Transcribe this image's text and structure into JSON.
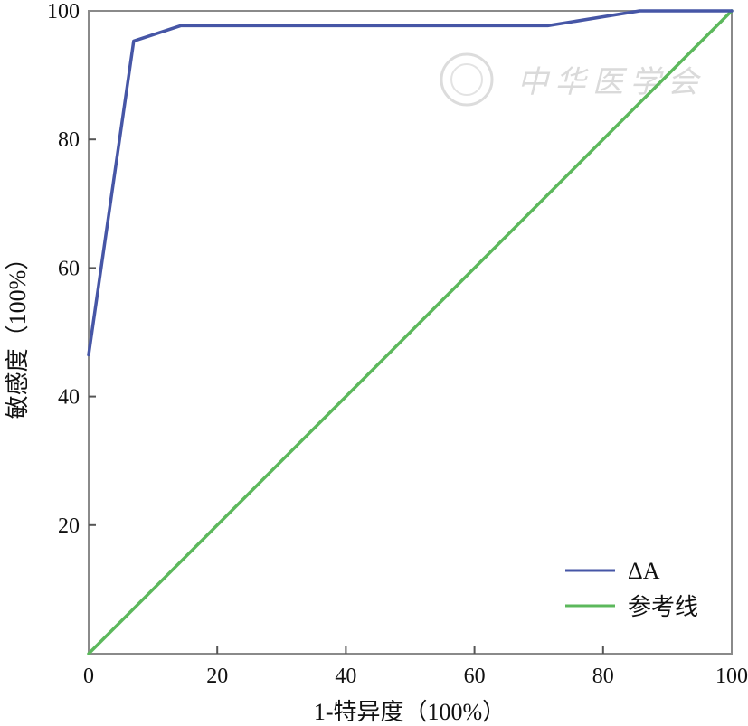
{
  "chart_data": {
    "type": "line",
    "xlabel": "1-特异度（100%）",
    "ylabel": "敏感度（100%）",
    "xlim": [
      0,
      100
    ],
    "ylim": [
      0,
      100
    ],
    "x_ticks": [
      "0",
      "20",
      "40",
      "60",
      "80",
      "100"
    ],
    "y_ticks": [
      "20",
      "40",
      "60",
      "80",
      "100"
    ],
    "grid": false,
    "legend_position": "bottom-right",
    "series": [
      {
        "name": "ΔA",
        "color": "#4656a6",
        "x": [
          0,
          7,
          14.3,
          71.4,
          85.7,
          100
        ],
        "y": [
          46.5,
          95.3,
          97.7,
          97.7,
          100,
          100
        ]
      },
      {
        "name": "参考线",
        "color": "#5cb85c",
        "x": [
          0,
          100
        ],
        "y": [
          0,
          100
        ]
      }
    ],
    "watermark": "中华医学会"
  }
}
